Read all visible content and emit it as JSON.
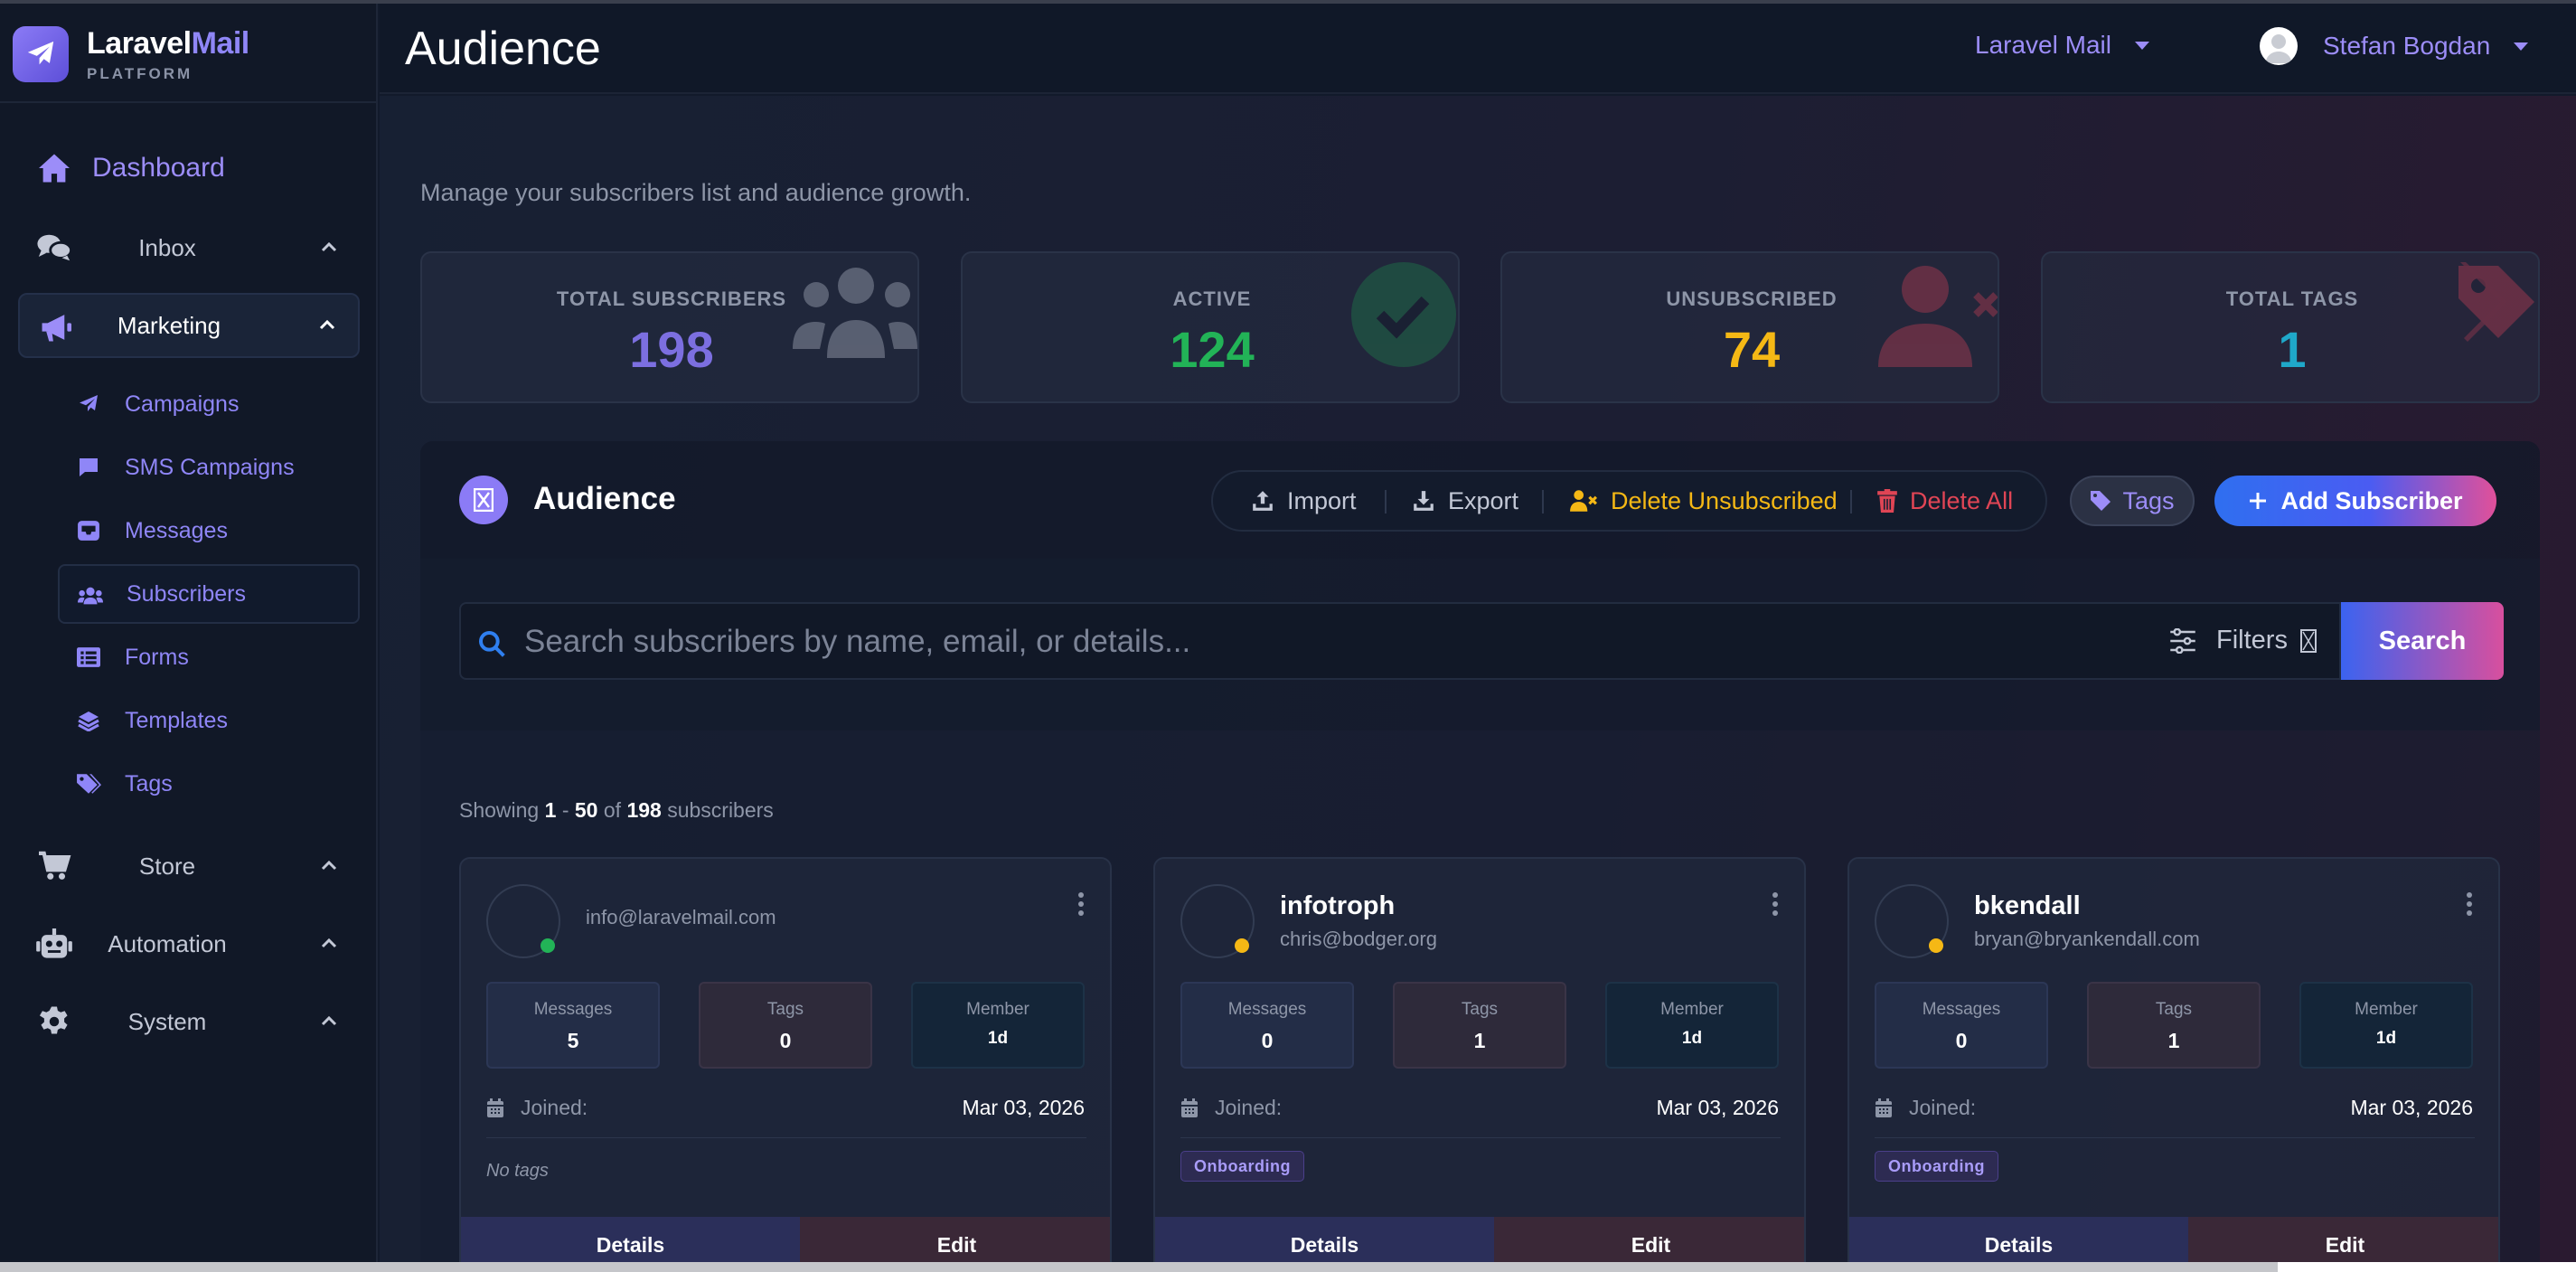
{
  "brand": {
    "name_main": "Laravel",
    "name_accent": "Mail",
    "sub": "PLATFORM"
  },
  "sidebar": {
    "dashboard": "Dashboard",
    "groups": [
      {
        "label": "Inbox",
        "icon": "comments-icon"
      },
      {
        "label": "Marketing",
        "icon": "megaphone-icon"
      },
      {
        "label": "Store",
        "icon": "cart-icon"
      },
      {
        "label": "Automation",
        "icon": "robot-icon"
      },
      {
        "label": "System",
        "icon": "gear-icon"
      }
    ],
    "marketing_items": [
      {
        "label": "Campaigns",
        "icon": "paper-plane-icon"
      },
      {
        "label": "SMS Campaigns",
        "icon": "message-icon"
      },
      {
        "label": "Messages",
        "icon": "inbox-icon"
      },
      {
        "label": "Subscribers",
        "icon": "users-icon"
      },
      {
        "label": "Forms",
        "icon": "list-icon"
      },
      {
        "label": "Templates",
        "icon": "layers-icon"
      },
      {
        "label": "Tags",
        "icon": "tags-icon"
      }
    ]
  },
  "header": {
    "title": "Audience",
    "team": "Laravel Mail",
    "user": "Stefan Bogdan"
  },
  "main": {
    "subtitle": "Manage your subscribers list and audience growth.",
    "stats": [
      {
        "label": "TOTAL SUBSCRIBERS",
        "value": "198",
        "color": "#7c6fe0",
        "icon": "users-icon"
      },
      {
        "label": "ACTIVE",
        "value": "124",
        "color": "#22b357",
        "icon": "check-circle-icon"
      },
      {
        "label": "UNSUBSCRIBED",
        "value": "74",
        "color": "#f5b815",
        "icon": "user-x-icon"
      },
      {
        "label": "TOTAL TAGS",
        "value": "1",
        "color": "#1fa8c9",
        "icon": "tags-icon"
      }
    ],
    "panel_title": "Audience",
    "actions": {
      "import": "Import",
      "export": "Export",
      "delete_unsubscribed": "Delete Unsubscribed",
      "delete_all": "Delete All",
      "tags": "Tags",
      "add_subscriber": "Add Subscriber"
    },
    "search": {
      "placeholder": "Search subscribers by name, email, or details...",
      "value": "",
      "filters": "Filters",
      "button": "Search"
    },
    "showing": {
      "prefix": "Showing",
      "from": "1",
      "sep": "-",
      "to": "50",
      "of": "of",
      "total": "198",
      "suffix": "subscribers"
    },
    "cards": [
      {
        "name": "",
        "email": "info@laravelmail.com",
        "status_color": "#22b357",
        "messages_label": "Messages",
        "messages": "5",
        "tags_label": "Tags",
        "tags": "0",
        "member_label": "Member",
        "member": "1d",
        "joined_label": "Joined:",
        "joined": "Mar 03, 2026",
        "no_tags": "No tags",
        "tag": "",
        "details": "Details",
        "edit": "Edit"
      },
      {
        "name": "infotroph",
        "email": "chris@bodger.org",
        "status_color": "#f5b815",
        "messages_label": "Messages",
        "messages": "0",
        "tags_label": "Tags",
        "tags": "1",
        "member_label": "Member",
        "member": "1d",
        "joined_label": "Joined:",
        "joined": "Mar 03, 2026",
        "no_tags": "",
        "tag": "Onboarding",
        "details": "Details",
        "edit": "Edit"
      },
      {
        "name": "bkendall",
        "email": "bryan@bryankendall.com",
        "status_color": "#f5b815",
        "messages_label": "Messages",
        "messages": "0",
        "tags_label": "Tags",
        "tags": "1",
        "member_label": "Member",
        "member": "1d",
        "joined_label": "Joined:",
        "joined": "Mar 03, 2026",
        "no_tags": "",
        "tag": "Onboarding",
        "details": "Details",
        "edit": "Edit"
      }
    ]
  }
}
